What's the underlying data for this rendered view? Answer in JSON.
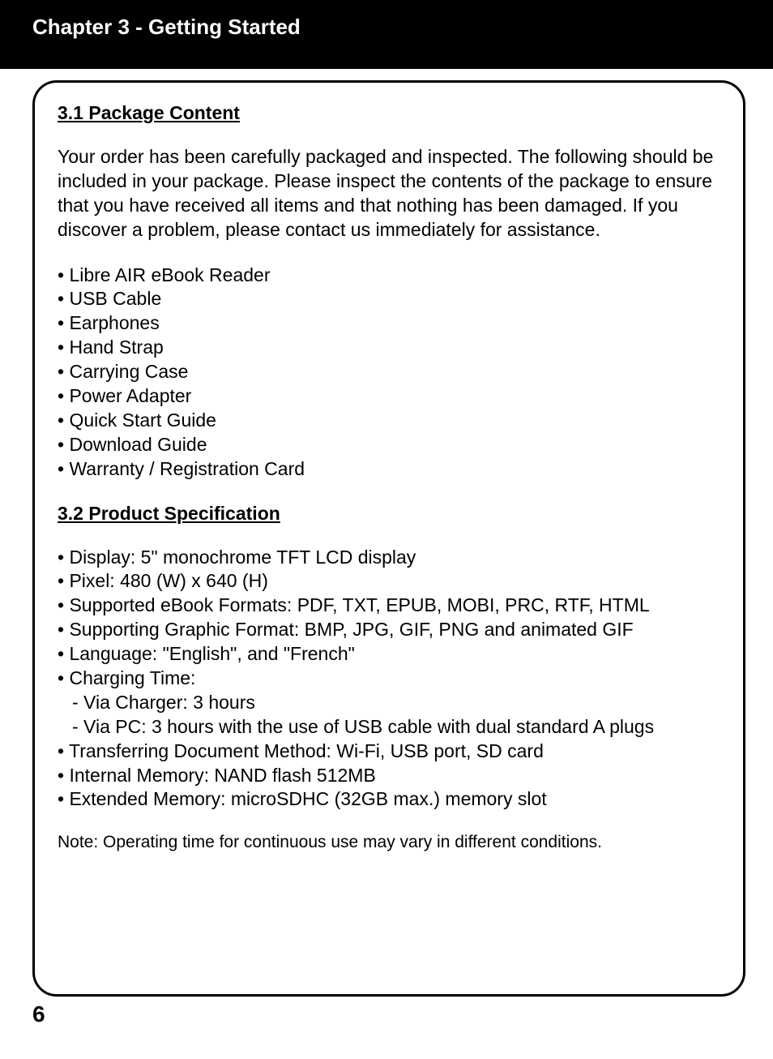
{
  "header": {
    "chapter_title": "Chapter 3 - Getting Started"
  },
  "section1": {
    "heading": "3.1 Package Content",
    "intro": "Your order has been carefully packaged and inspected. The following should be included in your package.  Please inspect the contents of the package to ensure that you have received all items and that nothing has been damaged. If you discover a problem, please contact us immediately for assistance.",
    "items": [
      "Libre AIR eBook Reader",
      "USB Cable",
      "Earphones",
      "Hand Strap",
      "Carrying Case",
      "Power Adapter",
      "Quick Start Guide",
      "Download Guide",
      "Warranty / Registration Card"
    ]
  },
  "section2": {
    "heading": "3.2 Product Specification",
    "specs": [
      "Display:   5\" monochrome TFT LCD display",
      "Pixel: 480 (W) x 640 (H)",
      "Supported eBook Formats:  PDF, TXT, EPUB, MOBI, PRC, RTF, HTML",
      "Supporting Graphic Format: BMP, JPG, GIF, PNG and animated GIF",
      "Language: \"English\", and \"French\"",
      "Charging Time:"
    ],
    "charging_sub": [
      "- Via Charger: 3 hours",
      "- Via PC: 3 hours with the use of USB cable with dual standard A plugs"
    ],
    "specs_after": [
      "Transferring Document Method: Wi-Fi, USB port, SD card",
      "Internal Memory: NAND flash 512MB",
      "Extended Memory: microSDHC (32GB max.) memory slot"
    ],
    "note": "Note:  Operating time for continuous use may vary in different conditions."
  },
  "page_number": "6",
  "colors": {
    "header_bg": "#000000",
    "header_text": "#ffffff",
    "body_bg": "#ffffff",
    "body_text": "#000000",
    "border": "#000000"
  },
  "typography": {
    "chapter_title_size": 26,
    "section_heading_size": 23,
    "body_size": 23,
    "note_size": 21,
    "page_number_size": 28,
    "font_family": "Arial"
  }
}
